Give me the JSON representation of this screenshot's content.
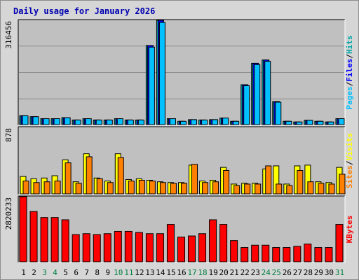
{
  "chart_data": {
    "type": "bar",
    "title": "Daily usage for January 2026",
    "colors": {
      "hits": "#00a8a8",
      "files": "#0000ff",
      "pages": "#00c0ff",
      "visits": "#ffff00",
      "sites": "#ff8000",
      "kbytes": "#ff0000",
      "weekday_label": "#000000",
      "weekend_label": "#008040",
      "panel_bg": "#c0c0c0",
      "frame_bg": "#d6d6d6"
    },
    "days": [
      "1",
      "2",
      "3",
      "4",
      "5",
      "6",
      "7",
      "8",
      "9",
      "10",
      "11",
      "12",
      "13",
      "14",
      "15",
      "16",
      "17",
      "18",
      "19",
      "20",
      "21",
      "22",
      "23",
      "24",
      "25",
      "26",
      "27",
      "28",
      "29",
      "30",
      "31"
    ],
    "weekend_days": [
      "3",
      "4",
      "10",
      "11",
      "17",
      "18",
      "24",
      "25",
      "31"
    ],
    "panels": [
      {
        "id": "hits-files-pages",
        "ymax_label": "316456",
        "ymax": 316456,
        "side_labels": [
          {
            "text": "Pages",
            "color": "#00c0ff"
          },
          {
            "text": "/",
            "color": "#000000"
          },
          {
            "text": "Files",
            "color": "#0000ff"
          },
          {
            "text": "/",
            "color": "#000000"
          },
          {
            "text": "Hits",
            "color": "#00a8a8"
          }
        ],
        "series": [
          {
            "name": "Hits",
            "color": "#00a8a8",
            "values": [
              27000,
              24000,
              18000,
              18000,
              21000,
              14000,
              18000,
              14000,
              14000,
              18000,
              14000,
              14000,
              240000,
              316456,
              18000,
              10000,
              15000,
              14000,
              15000,
              20000,
              10000,
              121000,
              186000,
              196000,
              70000,
              10000,
              8000,
              13000,
              10000,
              8000,
              18000
            ]
          },
          {
            "name": "Files",
            "color": "#0000ff",
            "values": [
              27000,
              24000,
              18000,
              18000,
              21000,
              14000,
              18000,
              14000,
              14000,
              18000,
              14000,
              14000,
              240000,
              316456,
              18000,
              10000,
              15000,
              14000,
              15000,
              20000,
              10000,
              121000,
              186000,
              196000,
              70000,
              10000,
              8000,
              13000,
              10000,
              8000,
              18000
            ]
          },
          {
            "name": "Pages",
            "color": "#00c0ff",
            "values": [
              27000,
              24000,
              18000,
              18000,
              21000,
              14000,
              18000,
              14000,
              14000,
              18000,
              14000,
              14000,
              235000,
              310000,
              18000,
              10000,
              15000,
              14000,
              15000,
              20000,
              10000,
              118000,
              182000,
              192000,
              68000,
              10000,
              8000,
              13000,
              10000,
              8000,
              18000
            ]
          }
        ]
      },
      {
        "id": "visits-sites",
        "ymax_label": "878",
        "ymax": 878,
        "side_labels": [
          {
            "text": "Sites",
            "color": "#ff8000"
          },
          {
            "text": "/",
            "color": "#000000"
          },
          {
            "text": "Visits",
            "color": "#ffff00"
          }
        ],
        "series": [
          {
            "name": "Visits",
            "color": "#ffff00",
            "values": [
              230,
              200,
              210,
              240,
              450,
              160,
              530,
              210,
              170,
              530,
              190,
              200,
              180,
              160,
              150,
              150,
              380,
              170,
              180,
              350,
              130,
              140,
              140,
              330,
              370,
              130,
              370,
              380,
              160,
              150,
              350
            ]
          },
          {
            "name": "Sites",
            "color": "#ff8000",
            "values": [
              170,
              150,
              160,
              170,
              410,
              140,
              490,
              200,
              150,
              480,
              170,
              180,
              170,
              150,
              140,
              140,
              390,
              150,
              160,
              310,
              110,
              130,
              130,
              370,
              130,
              110,
              310,
              160,
              140,
              130,
              260
            ]
          }
        ]
      },
      {
        "id": "kbytes",
        "ymax_label": "2820233",
        "ymax": 2820233,
        "side_labels": [
          {
            "text": "KBytes",
            "color": "#ff0000"
          }
        ],
        "series": [
          {
            "name": "KBytes",
            "color": "#ff0000",
            "values": [
              2820233,
              2180000,
              1920000,
              1920000,
              1820000,
              1180000,
              1220000,
              1180000,
              1220000,
              1320000,
              1320000,
              1270000,
              1220000,
              1220000,
              1620000,
              1070000,
              1120000,
              1220000,
              1820000,
              1620000,
              920000,
              620000,
              720000,
              720000,
              620000,
              620000,
              670000,
              770000,
              620000,
              620000,
              1620000
            ]
          }
        ]
      }
    ]
  }
}
